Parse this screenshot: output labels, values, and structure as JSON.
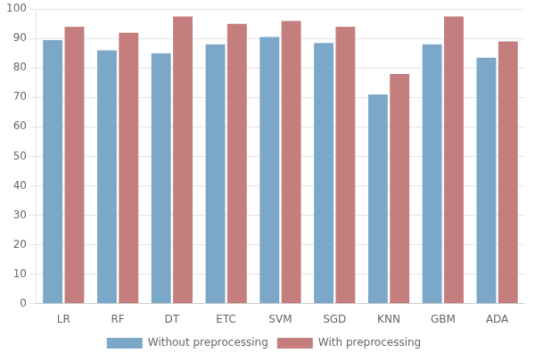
{
  "chart_data": {
    "type": "bar",
    "categories": [
      "LR",
      "RF",
      "DT",
      "ETC",
      "SVM",
      "SGD",
      "KNN",
      "GBM",
      "ADA"
    ],
    "series": [
      {
        "name": "Without preprocessing",
        "color": "#7ba7c9",
        "values": [
          89.5,
          86,
          85,
          88,
          90.5,
          88.5,
          71,
          88,
          83.5
        ]
      },
      {
        "name": "With preprocessing",
        "color": "#c47e7e",
        "values": [
          94,
          92,
          97.5,
          95,
          96,
          94,
          78,
          97.5,
          89
        ]
      }
    ],
    "ylim": [
      0,
      100
    ],
    "yticks": [
      0,
      10,
      20,
      30,
      40,
      50,
      60,
      70,
      80,
      90,
      100
    ],
    "grid": true,
    "legend": "bottom"
  }
}
